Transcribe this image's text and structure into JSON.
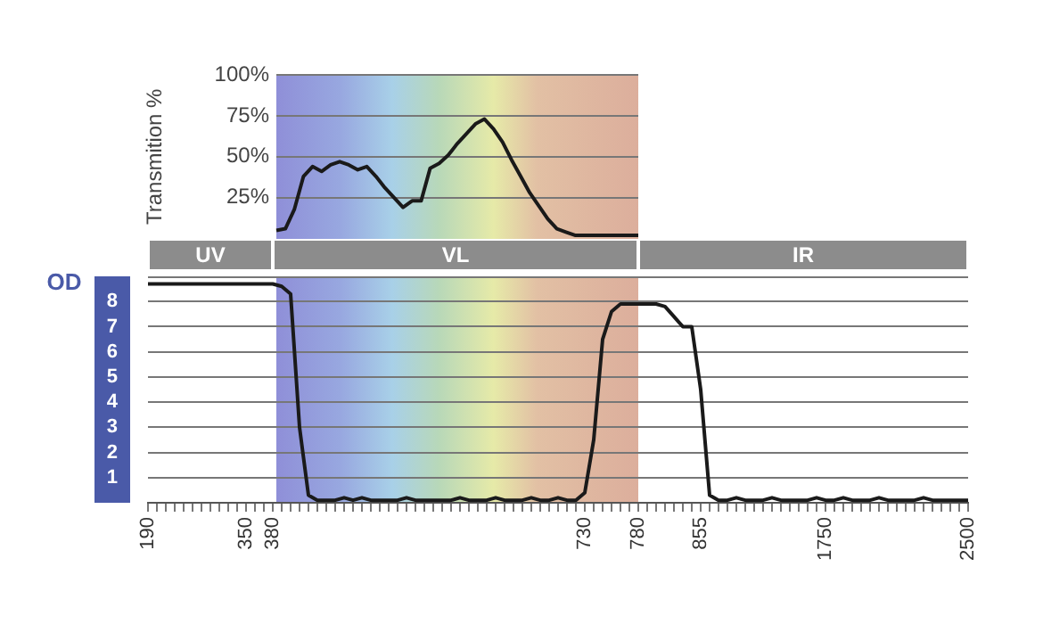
{
  "chart_data": [
    {
      "type": "line",
      "ylabel": "Transmition %",
      "categories": [
        null,
        null,
        null,
        null,
        null,
        null,
        null,
        null,
        null,
        null,
        null,
        null,
        null,
        null,
        null,
        null,
        null,
        null,
        null,
        null,
        null,
        null,
        null,
        null,
        null,
        null,
        null,
        null,
        null,
        null,
        null,
        null,
        null,
        null,
        null,
        null,
        null,
        null,
        null,
        null,
        null
      ],
      "values": [
        5,
        6,
        18,
        38,
        44,
        41,
        45,
        47,
        45,
        42,
        44,
        38,
        31,
        25,
        19,
        23,
        23,
        43,
        46,
        51,
        58,
        64,
        70,
        73,
        67,
        59,
        48,
        38,
        28,
        20,
        12,
        6,
        4,
        2,
        2,
        2,
        2,
        2,
        2,
        2,
        2
      ],
      "color": "#1a1a1a",
      "ylim": [
        0,
        100
      ],
      "yticks": [
        {
          "value": 25,
          "label": "25%"
        },
        {
          "value": 50,
          "label": "50%"
        },
        {
          "value": 75,
          "label": "75%"
        },
        {
          "value": 100,
          "label": "100%"
        }
      ],
      "grid": "y",
      "tick_labels": "y",
      "legend": false,
      "marker": "none"
    },
    {
      "type": "line",
      "ylabel": "OD",
      "categories": [
        "190",
        null,
        null,
        null,
        null,
        null,
        null,
        null,
        null,
        null,
        null,
        "350",
        null,
        null,
        "380",
        null,
        null,
        null,
        null,
        null,
        null,
        null,
        null,
        null,
        null,
        null,
        null,
        null,
        null,
        null,
        null,
        null,
        null,
        null,
        null,
        null,
        null,
        null,
        null,
        null,
        null,
        null,
        null,
        null,
        null,
        null,
        null,
        null,
        null,
        "730",
        null,
        null,
        null,
        null,
        null,
        "780",
        null,
        null,
        null,
        null,
        null,
        null,
        "855",
        null,
        null,
        null,
        null,
        null,
        null,
        null,
        null,
        null,
        null,
        null,
        null,
        null,
        "1750",
        null,
        null,
        null,
        null,
        null,
        null,
        null,
        null,
        null,
        null,
        null,
        null,
        null,
        null,
        null,
        "2500"
      ],
      "values": [
        8.7,
        8.7,
        8.7,
        8.7,
        8.7,
        8.7,
        8.7,
        8.7,
        8.7,
        8.7,
        8.7,
        8.7,
        8.7,
        8.7,
        8.7,
        8.6,
        8.3,
        3.0,
        0.3,
        0.1,
        0.1,
        0.1,
        0.2,
        0.1,
        0.2,
        0.1,
        0.1,
        0.1,
        0.1,
        0.2,
        0.1,
        0.1,
        0.1,
        0.1,
        0.1,
        0.2,
        0.1,
        0.1,
        0.1,
        0.2,
        0.1,
        0.1,
        0.1,
        0.2,
        0.1,
        0.1,
        0.2,
        0.1,
        0.1,
        0.4,
        2.5,
        6.5,
        7.6,
        7.9,
        7.9,
        7.9,
        7.9,
        7.9,
        7.8,
        7.4,
        7.0,
        7.0,
        4.5,
        0.3,
        0.1,
        0.1,
        0.2,
        0.1,
        0.1,
        0.1,
        0.2,
        0.1,
        0.1,
        0.1,
        0.1,
        0.2,
        0.1,
        0.1,
        0.2,
        0.1,
        0.1,
        0.1,
        0.2,
        0.1,
        0.1,
        0.1,
        0.1,
        0.2,
        0.1,
        0.1,
        0.1,
        0.1,
        0.1
      ],
      "color": "#1a1a1a",
      "ylim": [
        0,
        9
      ],
      "yticks": [
        1,
        2,
        3,
        4,
        5,
        6,
        7,
        8
      ],
      "annotations": [
        "UV",
        "VL",
        "IR"
      ],
      "grid": "y",
      "legend": false,
      "marker": "none"
    }
  ]
}
